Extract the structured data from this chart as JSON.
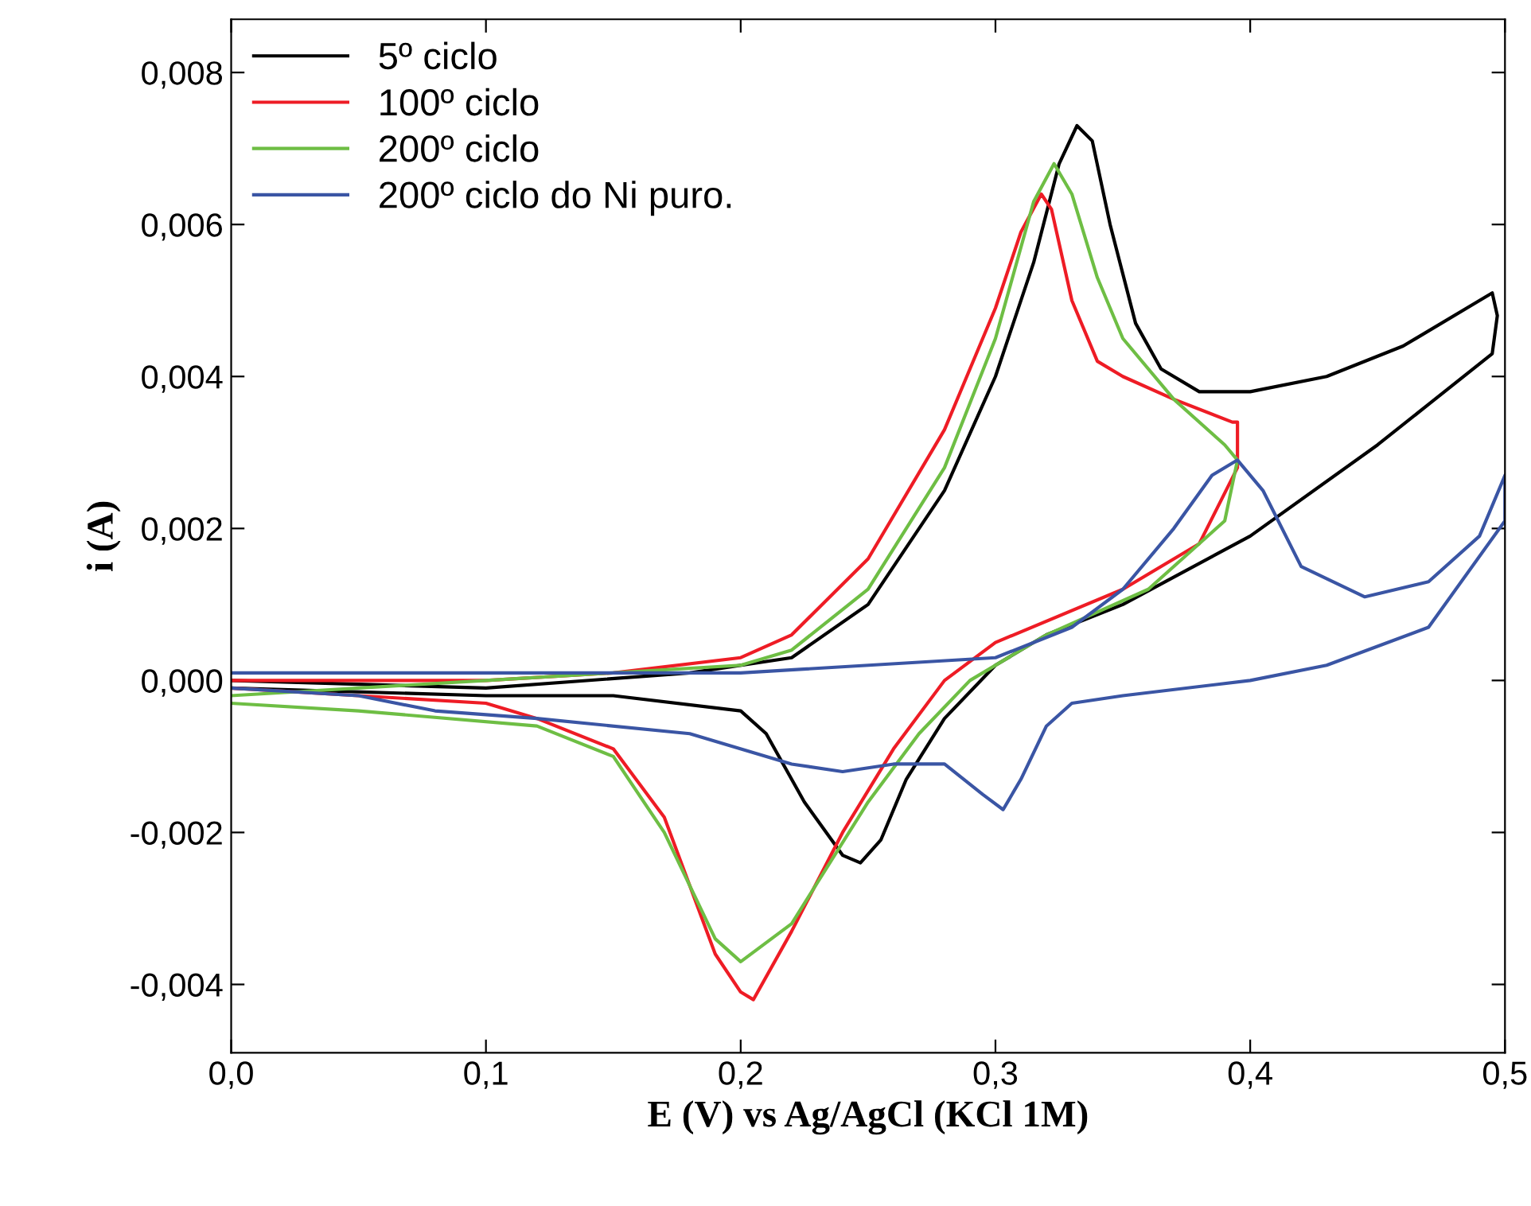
{
  "chart_data": {
    "type": "line",
    "xlabel": "E (V) vs Ag/AgCl (KCl 1M)",
    "ylabel": "i (A)",
    "xlim": [
      0,
      0.5
    ],
    "ylim": [
      -0.0049,
      0.0087
    ],
    "xticks": [
      {
        "value": 0,
        "label": "0,0"
      },
      {
        "value": 0.1,
        "label": "0,1"
      },
      {
        "value": 0.2,
        "label": "0,2"
      },
      {
        "value": 0.3,
        "label": "0,3"
      },
      {
        "value": 0.4,
        "label": "0,4"
      },
      {
        "value": 0.5,
        "label": "0,5"
      }
    ],
    "yticks": [
      {
        "value": -0.004,
        "label": "-0,004"
      },
      {
        "value": -0.002,
        "label": "-0,002"
      },
      {
        "value": 0,
        "label": "0,000"
      },
      {
        "value": 0.002,
        "label": "0,002"
      },
      {
        "value": 0.004,
        "label": "0,004"
      },
      {
        "value": 0.006,
        "label": "0,006"
      },
      {
        "value": 0.008,
        "label": "0,008"
      }
    ],
    "legend": "top left",
    "grid": false,
    "marker": "none",
    "line_style": "solid",
    "series": [
      {
        "name": "5º ciclo",
        "color": "#000000",
        "x": [
          0,
          0.1,
          0.18,
          0.22,
          0.25,
          0.28,
          0.3,
          0.315,
          0.325,
          0.332,
          0.338,
          0.345,
          0.355,
          0.365,
          0.38,
          0.4,
          0.43,
          0.46,
          0.49,
          0.495,
          0.497,
          0.495,
          0.45,
          0.4,
          0.35,
          0.32,
          0.3,
          0.28,
          0.265,
          0.255,
          0.247,
          0.24,
          0.225,
          0.21,
          0.2,
          0.15,
          0.1,
          0
        ],
        "values": [
          0.0,
          -0.0001,
          0.0001,
          0.0003,
          0.001,
          0.0025,
          0.004,
          0.0055,
          0.0068,
          0.0073,
          0.0071,
          0.006,
          0.0047,
          0.0041,
          0.0038,
          0.0038,
          0.004,
          0.0044,
          0.005,
          0.0051,
          0.0048,
          0.0043,
          0.0031,
          0.0019,
          0.001,
          0.0006,
          0.0002,
          -0.0005,
          -0.0013,
          -0.0021,
          -0.0024,
          -0.0023,
          -0.0016,
          -0.0007,
          -0.0004,
          -0.0002,
          -0.0002,
          -0.0001
        ]
      },
      {
        "name": "100º ciclo",
        "color": "#ee1c25",
        "x": [
          0,
          0.1,
          0.15,
          0.2,
          0.22,
          0.25,
          0.28,
          0.3,
          0.31,
          0.318,
          0.322,
          0.33,
          0.34,
          0.35,
          0.37,
          0.393,
          0.395,
          0.395,
          0.38,
          0.35,
          0.3,
          0.28,
          0.26,
          0.24,
          0.22,
          0.205,
          0.2,
          0.19,
          0.17,
          0.15,
          0.12,
          0.1,
          0.05,
          0
        ],
        "values": [
          0.0,
          0.0,
          0.0001,
          0.0003,
          0.0006,
          0.0016,
          0.0033,
          0.0049,
          0.0059,
          0.0064,
          0.0062,
          0.005,
          0.0042,
          0.004,
          0.0037,
          0.0034,
          0.0034,
          0.0028,
          0.0018,
          0.0012,
          0.0005,
          0.0,
          -0.0009,
          -0.002,
          -0.0033,
          -0.0042,
          -0.0041,
          -0.0036,
          -0.0018,
          -0.0009,
          -0.0005,
          -0.0003,
          -0.0002,
          -0.0001
        ]
      },
      {
        "name": "200º ciclo",
        "color": "#6ebe44",
        "x": [
          0,
          0.1,
          0.2,
          0.22,
          0.25,
          0.28,
          0.3,
          0.315,
          0.323,
          0.33,
          0.34,
          0.35,
          0.37,
          0.39,
          0.395,
          0.39,
          0.36,
          0.32,
          0.29,
          0.27,
          0.25,
          0.22,
          0.2,
          0.19,
          0.17,
          0.15,
          0.12,
          0.05,
          0
        ],
        "values": [
          -0.0002,
          0.0,
          0.0002,
          0.0004,
          0.0012,
          0.0028,
          0.0045,
          0.0063,
          0.0068,
          0.0064,
          0.0053,
          0.0045,
          0.0037,
          0.0031,
          0.0029,
          0.0021,
          0.0012,
          0.0006,
          0.0,
          -0.0007,
          -0.0016,
          -0.0032,
          -0.0037,
          -0.0034,
          -0.002,
          -0.001,
          -0.0006,
          -0.0004,
          -0.0003
        ]
      },
      {
        "name": "200º ciclo do Ni puro.",
        "color": "#3a55a4",
        "x": [
          0,
          0.2,
          0.3,
          0.33,
          0.35,
          0.37,
          0.385,
          0.395,
          0.405,
          0.42,
          0.445,
          0.47,
          0.49,
          0.5,
          0.5,
          0.47,
          0.43,
          0.4,
          0.35,
          0.33,
          0.32,
          0.31,
          0.303,
          0.295,
          0.28,
          0.26,
          0.24,
          0.22,
          0.18,
          0.12,
          0.08,
          0.05,
          0
        ],
        "values": [
          0.0001,
          0.0001,
          0.0003,
          0.0007,
          0.0012,
          0.002,
          0.0027,
          0.0029,
          0.0025,
          0.0015,
          0.0011,
          0.0013,
          0.0019,
          0.0027,
          0.0021,
          0.0007,
          0.0002,
          0.0,
          -0.0002,
          -0.0003,
          -0.0006,
          -0.0013,
          -0.0017,
          -0.0015,
          -0.0011,
          -0.0011,
          -0.0012,
          -0.0011,
          -0.0007,
          -0.0005,
          -0.0004,
          -0.0002,
          -0.0001
        ]
      }
    ]
  }
}
